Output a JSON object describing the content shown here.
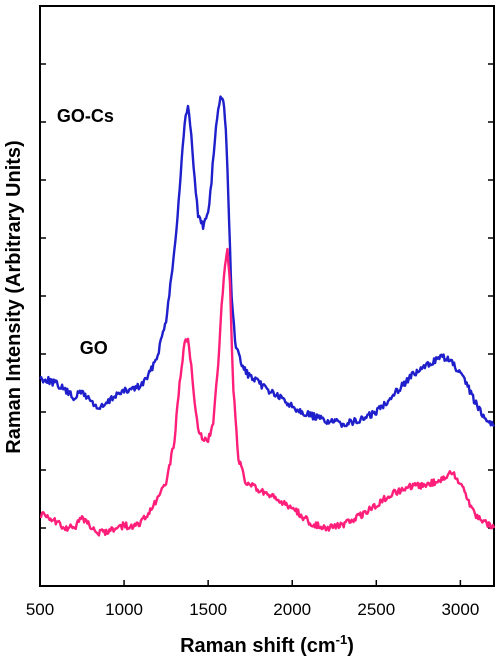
{
  "chart_data": {
    "type": "line",
    "xlabel": "Raman shift (cm",
    "xlabel_sup": "-1",
    "xlabel_close": ")",
    "ylabel": "Raman Intensity (Arbitrary Units)",
    "xlim": [
      500,
      3200
    ],
    "ylim": [
      0,
      100
    ],
    "xticks": [
      500,
      1000,
      1500,
      2000,
      2500,
      3000
    ],
    "xtick_labels": [
      "500",
      "1000",
      "1500",
      "2000",
      "2500",
      "3000"
    ],
    "yticks": [
      10,
      20,
      30,
      40,
      50,
      60,
      70,
      80,
      90
    ],
    "grid": false,
    "series": [
      {
        "name": "GO-Cs",
        "color": "#1f1fcc",
        "x": [
          500,
          550,
          600,
          650,
          700,
          750,
          800,
          850,
          900,
          950,
          1000,
          1050,
          1100,
          1150,
          1200,
          1250,
          1300,
          1330,
          1360,
          1380,
          1400,
          1420,
          1440,
          1470,
          1500,
          1520,
          1540,
          1560,
          1580,
          1595,
          1610,
          1625,
          1640,
          1660,
          1700,
          1750,
          1800,
          1850,
          1900,
          2000,
          2100,
          2200,
          2300,
          2400,
          2500,
          2600,
          2700,
          2800,
          2850,
          2900,
          2950,
          3000,
          3050,
          3100,
          3150,
          3200
        ],
        "y": [
          35.8,
          35.5,
          34.8,
          33.8,
          32.5,
          33.5,
          32.0,
          30.5,
          31.5,
          33.0,
          33.5,
          34.0,
          34.5,
          36.5,
          40.0,
          46.0,
          58.0,
          68.0,
          80.0,
          82.5,
          78.0,
          70.0,
          64.0,
          62.0,
          64.5,
          70.0,
          77.0,
          82.5,
          84.5,
          83.0,
          76.0,
          62.0,
          50.0,
          42.0,
          38.0,
          36.0,
          35.0,
          34.0,
          33.0,
          31.0,
          29.5,
          28.5,
          28.0,
          28.5,
          30.0,
          33.0,
          36.0,
          38.0,
          39.0,
          39.5,
          38.5,
          36.5,
          34.0,
          31.0,
          29.0,
          27.5
        ]
      },
      {
        "name": "GO",
        "color": "#ff1f7a",
        "x": [
          500,
          550,
          600,
          650,
          700,
          750,
          800,
          850,
          900,
          950,
          1000,
          1050,
          1100,
          1150,
          1200,
          1250,
          1300,
          1330,
          1360,
          1380,
          1400,
          1420,
          1440,
          1470,
          1500,
          1530,
          1560,
          1580,
          1600,
          1615,
          1630,
          1650,
          1680,
          1720,
          1800,
          1900,
          2000,
          2100,
          2200,
          2300,
          2400,
          2500,
          2600,
          2700,
          2800,
          2900,
          2950,
          3000,
          3050,
          3100,
          3150,
          3200
        ],
        "y": [
          12.5,
          12.0,
          11.0,
          10.0,
          10.0,
          11.5,
          10.5,
          9.0,
          9.5,
          10.0,
          10.5,
          10.0,
          11.0,
          12.5,
          15.0,
          18.0,
          25.0,
          35.0,
          42.0,
          43.0,
          38.0,
          31.0,
          27.0,
          25.5,
          25.0,
          28.0,
          38.0,
          48.0,
          55.0,
          58.0,
          52.0,
          34.0,
          22.0,
          18.0,
          16.5,
          15.0,
          13.5,
          11.0,
          10.0,
          10.5,
          12.0,
          14.0,
          16.0,
          17.0,
          17.5,
          18.5,
          19.5,
          18.0,
          14.5,
          12.0,
          11.0,
          10.0
        ]
      }
    ],
    "annotations": [
      {
        "text": "GO-Cs",
        "x": 770,
        "y": 80
      },
      {
        "text": "GO",
        "x": 820,
        "y": 40
      }
    ]
  }
}
